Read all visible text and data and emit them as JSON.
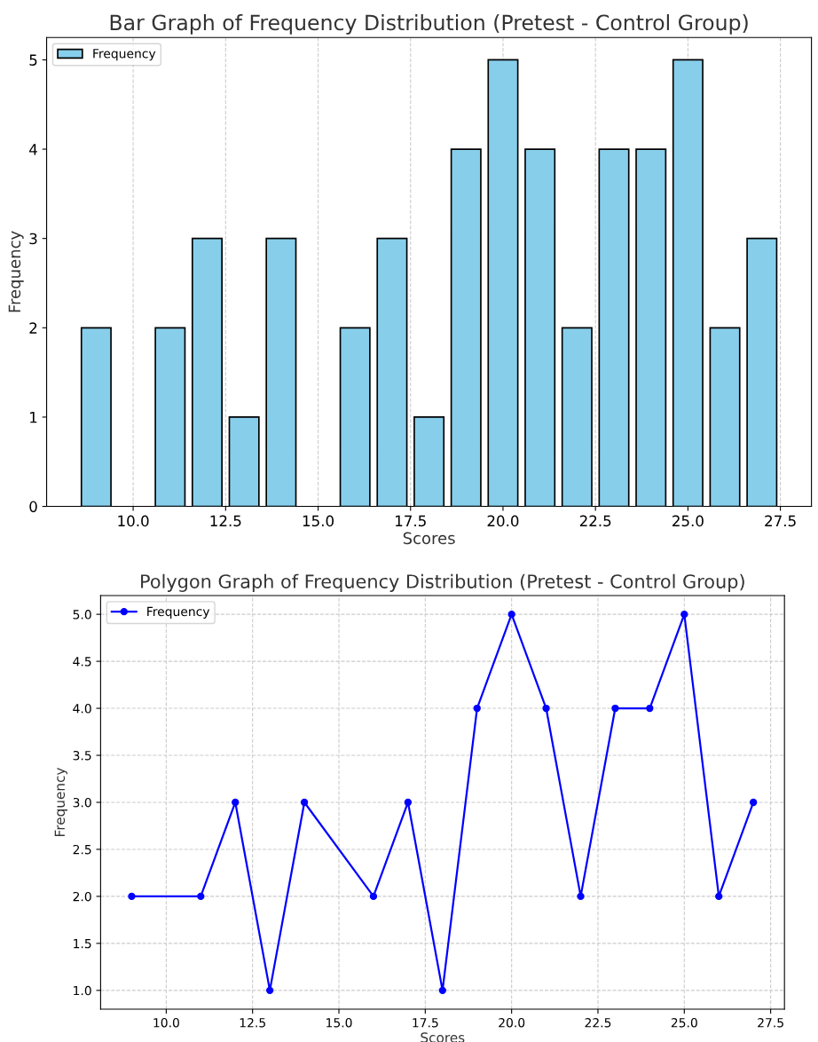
{
  "chart_data": [
    {
      "type": "bar",
      "title": "Bar Graph of Frequency Distribution (Pretest - Control Group)",
      "xlabel": "Scores",
      "ylabel": "Frequency",
      "x": [
        9,
        11,
        12,
        13,
        14,
        16,
        17,
        18,
        19,
        20,
        21,
        22,
        23,
        24,
        25,
        26,
        27
      ],
      "series": [
        {
          "name": "Frequency",
          "color": "#87ceeb",
          "values": [
            2,
            2,
            3,
            1,
            3,
            2,
            3,
            1,
            4,
            5,
            4,
            2,
            4,
            4,
            5,
            2,
            3
          ]
        }
      ],
      "xlim": [
        7.66,
        28.34
      ],
      "xticks": [
        {
          "value": 10,
          "label": "10.0"
        },
        {
          "value": 12.5,
          "label": "12.5"
        },
        {
          "value": 15,
          "label": "15.0"
        },
        {
          "value": 17.5,
          "label": "17.5"
        },
        {
          "value": 20,
          "label": "20.0"
        },
        {
          "value": 22.5,
          "label": "22.5"
        },
        {
          "value": 25,
          "label": "25.0"
        },
        {
          "value": 27.5,
          "label": "27.5"
        }
      ],
      "ylim": [
        0,
        5.25
      ],
      "yticks": [
        0,
        1,
        2,
        3,
        4,
        5
      ],
      "grid": "x",
      "legend": "top left"
    },
    {
      "type": "line",
      "title": "Polygon Graph of Frequency Distribution (Pretest - Control Group)",
      "xlabel": "Scores",
      "ylabel": "Frequency",
      "x": [
        9,
        11,
        12,
        13,
        14,
        16,
        17,
        18,
        19,
        20,
        21,
        22,
        23,
        24,
        25,
        26,
        27
      ],
      "series": [
        {
          "name": "Frequency",
          "color": "#0000ff",
          "values": [
            2,
            2,
            3,
            1,
            3,
            2,
            3,
            1,
            4,
            5,
            4,
            2,
            4,
            4,
            5,
            2,
            3
          ]
        }
      ],
      "xlim": [
        8.1,
        27.9
      ],
      "xticks": [
        {
          "value": 10,
          "label": "10.0"
        },
        {
          "value": 12.5,
          "label": "12.5"
        },
        {
          "value": 15,
          "label": "15.0"
        },
        {
          "value": 17.5,
          "label": "17.5"
        },
        {
          "value": 20,
          "label": "20.0"
        },
        {
          "value": 22.5,
          "label": "22.5"
        },
        {
          "value": 25,
          "label": "25.0"
        },
        {
          "value": 27.5,
          "label": "27.5"
        }
      ],
      "ylim": [
        0.8,
        5.2
      ],
      "yticks": [
        {
          "value": 1,
          "label": "1.0"
        },
        {
          "value": 1.5,
          "label": "1.5"
        },
        {
          "value": 2,
          "label": "2.0"
        },
        {
          "value": 2.5,
          "label": "2.5"
        },
        {
          "value": 3,
          "label": "3.0"
        },
        {
          "value": 3.5,
          "label": "3.5"
        },
        {
          "value": 4,
          "label": "4.0"
        },
        {
          "value": 4.5,
          "label": "4.5"
        },
        {
          "value": 5,
          "label": "5.0"
        }
      ],
      "grid": true,
      "legend": "top left",
      "marker": "circle",
      "line_style": "solid"
    }
  ]
}
